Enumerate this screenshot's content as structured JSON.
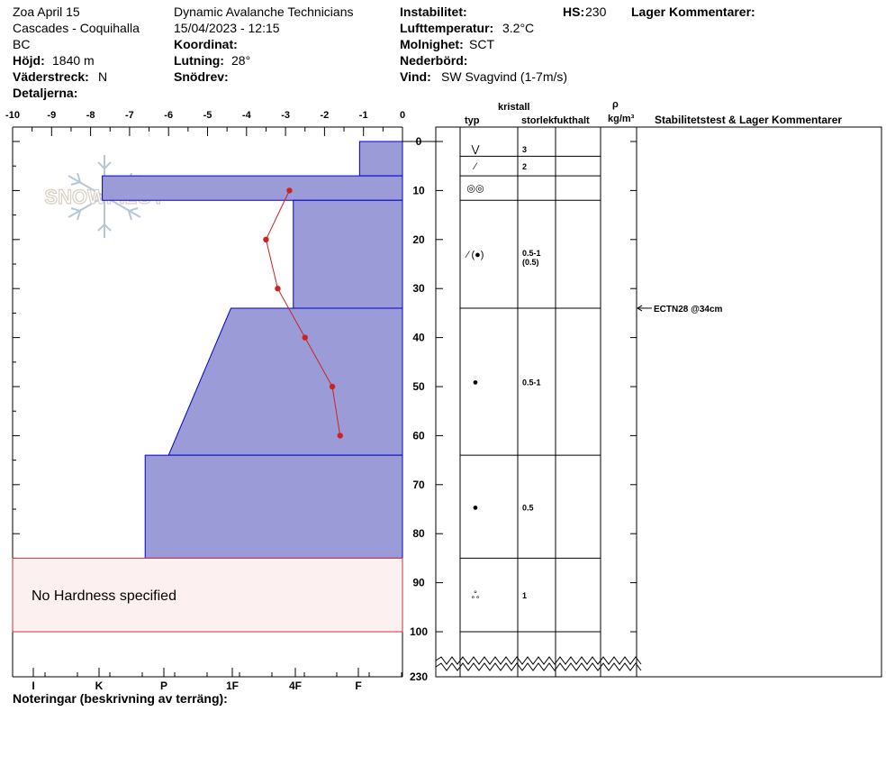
{
  "header": {
    "col1": {
      "site_name": "Zoa April 15",
      "range": "Cascades - Coquihalla",
      "region": "BC",
      "elevation_label": "Höjd:",
      "elevation_value": "1840 m",
      "aspect_label": "Väderstreck:",
      "aspect_value": "N",
      "details_label": "Detaljerna:"
    },
    "col2": {
      "organization": "Dynamic Avalanche Technicians",
      "datetime": "15/04/2023 - 12:15",
      "coord_label": "Koordinat:",
      "slope_label": "Lutning:",
      "slope_value": "28°",
      "snowdrift_label": "Snödrev:"
    },
    "col3": {
      "instability_label": "Instabilitet:",
      "air_temp_label": "Lufttemperatur:",
      "air_temp_value": "3.2°C",
      "cloud_label": "Molnighet:",
      "cloud_value": "SCT",
      "precip_label": "Nederbörd:",
      "wind_label": "Vind:",
      "wind_value": "SW Svagvind (1-7m/s)"
    },
    "hs_label": "HS:",
    "hs_value": "230",
    "layer_comments_label": "Lager Kommentarer:"
  },
  "watermark": "SNOWPILOT",
  "footer": {
    "notes_label": "Noteringar (beskrivning av terräng):"
  },
  "table_headers": {
    "crystal": "kristall",
    "type": "typ",
    "size": "storlek",
    "moisture": "fukthalt",
    "rho": "ρ",
    "density_unit": "kg/m³",
    "stability": "Stabilitetstest & Lager Kommentarer"
  },
  "no_hardness_text": "No Hardness specified",
  "chart_data": {
    "type": "snow-profile",
    "temperature_axis": {
      "range": [
        -10,
        0
      ],
      "ticks": [
        "-10",
        "-9",
        "-8",
        "-7",
        "-6",
        "-5",
        "-4",
        "-3",
        "-2",
        "-1",
        "0"
      ]
    },
    "depth_axis": {
      "range": [
        0,
        100
      ],
      "ticks": [
        "0",
        "10",
        "20",
        "30",
        "40",
        "50",
        "60",
        "70",
        "80",
        "90",
        "100"
      ],
      "total_label": "230"
    },
    "hardness_axis": {
      "labels": [
        "I",
        "K",
        "P",
        "1F",
        "4F",
        "F"
      ]
    },
    "hardness_layers": [
      {
        "top": 0,
        "bottom": 7,
        "temp_top": -1.1,
        "temp_bottom": -1.1
      },
      {
        "top": 7,
        "bottom": 12,
        "temp_top": -7.7,
        "temp_bottom": -7.7
      },
      {
        "top": 12,
        "bottom": 34,
        "temp_top": -2.8,
        "temp_bottom": -2.8
      },
      {
        "top": 34,
        "bottom": 64,
        "temp_top": -4.4,
        "temp_bottom": -6.0
      },
      {
        "top": 64,
        "bottom": 85,
        "temp_top": -6.6,
        "temp_bottom": -6.6
      }
    ],
    "no_hardness_layer": {
      "top": 85,
      "bottom": 100
    },
    "temperature_profile": [
      {
        "depth": 10,
        "temp": -2.9
      },
      {
        "depth": 20,
        "temp": -3.5
      },
      {
        "depth": 30,
        "temp": -3.2
      },
      {
        "depth": 40,
        "temp": -2.5
      },
      {
        "depth": 50,
        "temp": -1.8
      },
      {
        "depth": 60,
        "temp": -1.6
      }
    ],
    "crystal_layers": [
      {
        "top": 0,
        "bottom": 3,
        "type_symbol": "⋁",
        "size": "3",
        "size2": ""
      },
      {
        "top": 3,
        "bottom": 7,
        "type_symbol": "⁄",
        "size": "2",
        "size2": ""
      },
      {
        "top": 7,
        "bottom": 12,
        "type_symbol": "◎◎",
        "size": "",
        "size2": ""
      },
      {
        "top": 12,
        "bottom": 34,
        "type_symbol": "⁄ (●)",
        "size": "0.5-1",
        "size2": "(0.5)"
      },
      {
        "top": 34,
        "bottom": 64,
        "type_symbol": "●",
        "size": "0.5-1",
        "size2": ""
      },
      {
        "top": 64,
        "bottom": 85,
        "type_symbol": "●",
        "size": "0.5",
        "size2": ""
      },
      {
        "top": 85,
        "bottom": 100,
        "type_symbol": "ஃ",
        "size": "1",
        "size2": ""
      }
    ],
    "stability_tests": [
      {
        "depth": 34,
        "label": "ECTN28 @34cm"
      }
    ],
    "colors": {
      "hardness_fill": "#9b9bd7",
      "hardness_stroke": "#0000cc",
      "temperature_line": "#cc2222",
      "no_hardness_fill": "#fdf0f0",
      "no_hardness_stroke": "#cc3333"
    }
  }
}
